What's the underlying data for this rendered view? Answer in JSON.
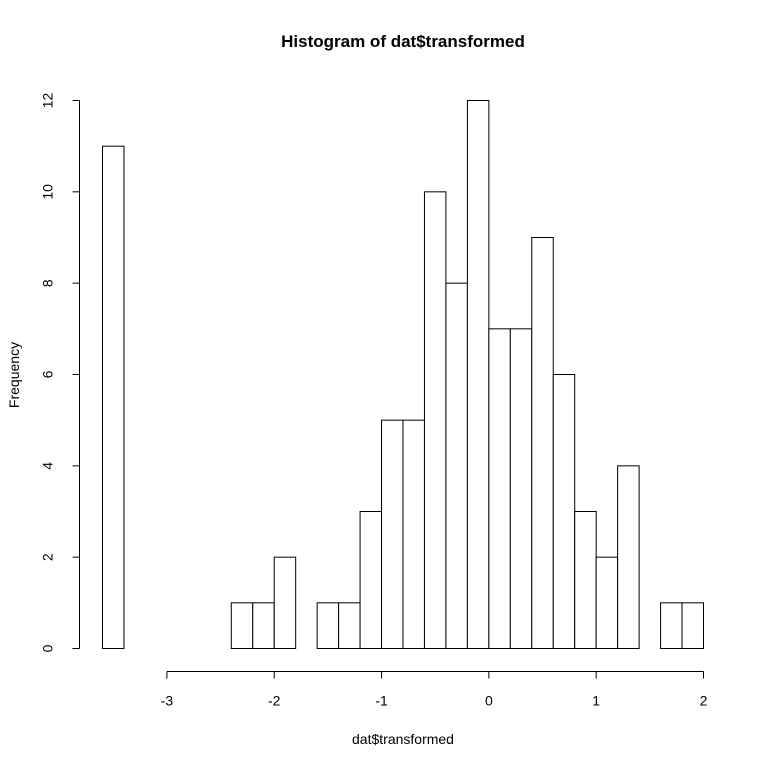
{
  "chart_data": {
    "type": "bar",
    "title": "Histogram of dat$transformed",
    "xlabel": "dat$transformed",
    "ylabel": "Frequency",
    "bin_width": 0.2,
    "bins": [
      {
        "x0": -3.6,
        "x1": -3.4,
        "count": 11
      },
      {
        "x0": -3.4,
        "x1": -3.2,
        "count": 0
      },
      {
        "x0": -3.2,
        "x1": -3.0,
        "count": 0
      },
      {
        "x0": -3.0,
        "x1": -2.8,
        "count": 0
      },
      {
        "x0": -2.8,
        "x1": -2.6,
        "count": 0
      },
      {
        "x0": -2.6,
        "x1": -2.4,
        "count": 0
      },
      {
        "x0": -2.4,
        "x1": -2.2,
        "count": 1
      },
      {
        "x0": -2.2,
        "x1": -2.0,
        "count": 1
      },
      {
        "x0": -2.0,
        "x1": -1.8,
        "count": 2
      },
      {
        "x0": -1.8,
        "x1": -1.6,
        "count": 0
      },
      {
        "x0": -1.6,
        "x1": -1.4,
        "count": 1
      },
      {
        "x0": -1.4,
        "x1": -1.2,
        "count": 1
      },
      {
        "x0": -1.2,
        "x1": -1.0,
        "count": 3
      },
      {
        "x0": -1.0,
        "x1": -0.8,
        "count": 5
      },
      {
        "x0": -0.8,
        "x1": -0.6,
        "count": 5
      },
      {
        "x0": -0.6,
        "x1": -0.4,
        "count": 10
      },
      {
        "x0": -0.4,
        "x1": -0.2,
        "count": 8
      },
      {
        "x0": -0.2,
        "x1": 0.0,
        "count": 12
      },
      {
        "x0": 0.0,
        "x1": 0.2,
        "count": 7
      },
      {
        "x0": 0.2,
        "x1": 0.4,
        "count": 7
      },
      {
        "x0": 0.4,
        "x1": 0.6,
        "count": 9
      },
      {
        "x0": 0.6,
        "x1": 0.8,
        "count": 6
      },
      {
        "x0": 0.8,
        "x1": 1.0,
        "count": 3
      },
      {
        "x0": 1.0,
        "x1": 1.2,
        "count": 2
      },
      {
        "x0": 1.2,
        "x1": 1.4,
        "count": 4
      },
      {
        "x0": 1.4,
        "x1": 1.6,
        "count": 0
      },
      {
        "x0": 1.6,
        "x1": 1.8,
        "count": 1
      },
      {
        "x0": 1.8,
        "x1": 2.0,
        "count": 1
      }
    ],
    "xlim": [
      -3.6,
      2.0
    ],
    "ylim": [
      0,
      12
    ],
    "x_ticks": [
      -3,
      -2,
      -1,
      0,
      1,
      2
    ],
    "y_ticks": [
      0,
      2,
      4,
      6,
      8,
      10,
      12
    ],
    "grid": false,
    "legend": "none",
    "colors": {
      "bar_fill": "#ffffff",
      "bar_stroke": "#000000"
    }
  }
}
